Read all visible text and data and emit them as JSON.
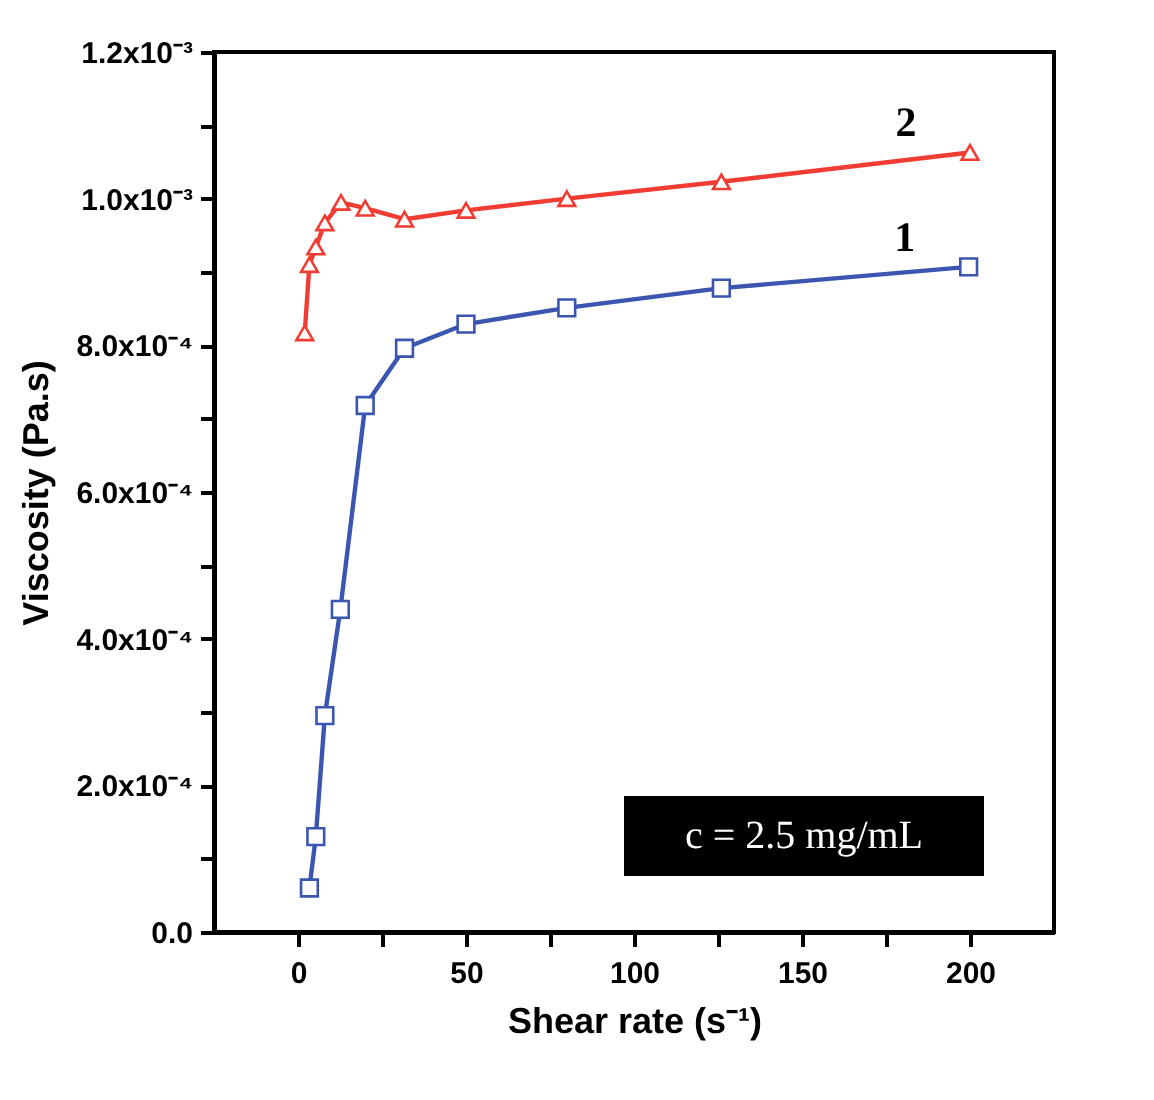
{
  "chart_data": {
    "type": "line",
    "xlabel": "Shear rate (s⁻¹)",
    "ylabel": "Viscosity (Pa.s)",
    "xlim": [
      -25,
      225
    ],
    "ylim": [
      0,
      0.0012
    ],
    "xticks": [
      0,
      {
        "value": 25,
        "label": null
      },
      50,
      {
        "value": 75,
        "label": null
      },
      100,
      {
        "value": 125,
        "label": null
      },
      150,
      {
        "value": 175,
        "label": null
      },
      200
    ],
    "yticks": [
      {
        "value": 0,
        "label": "0.0"
      },
      {
        "value": 0.0001,
        "label": null
      },
      {
        "value": 0.0002,
        "label": "2.0x10⁻⁴"
      },
      {
        "value": 0.0003,
        "label": null
      },
      {
        "value": 0.0004,
        "label": "4.0x10⁻⁴"
      },
      {
        "value": 0.0005,
        "label": null
      },
      {
        "value": 0.0006,
        "label": "6.0x10⁻⁴"
      },
      {
        "value": 0.0007,
        "label": null
      },
      {
        "value": 0.0008,
        "label": "8.0x10⁻⁴"
      },
      {
        "value": 0.0009,
        "label": null
      },
      {
        "value": 0.001,
        "label": "1.0x10⁻³"
      },
      {
        "value": 0.0011,
        "label": null
      },
      {
        "value": 0.0012,
        "label": "1.2x10⁻³"
      }
    ],
    "grid": false,
    "line_style": "solid",
    "series": [
      {
        "name": "1",
        "color": "#3a56b0",
        "marker": "square",
        "x": [
          3.4,
          5.3,
          8,
          12.6,
          20,
          31.7,
          50,
          80,
          126,
          199.6
        ],
        "values": [
          6e-05,
          0.00013,
          0.000295,
          0.00044,
          0.000718,
          0.000796,
          0.000829,
          0.000851,
          0.000878,
          0.000907
        ]
      },
      {
        "name": "2",
        "color": "#f03c32",
        "marker": "triangle",
        "x": [
          2,
          3.4,
          5.3,
          8,
          12.8,
          20,
          31.7,
          50,
          80,
          126,
          200
        ],
        "values": [
          0.000817,
          0.00091,
          0.000934,
          0.000967,
          0.000995,
          0.000987,
          0.000972,
          0.000984,
          0.001,
          0.001023,
          0.001063
        ]
      }
    ],
    "annotations": [
      "c = 2.5 mg/mL"
    ]
  }
}
